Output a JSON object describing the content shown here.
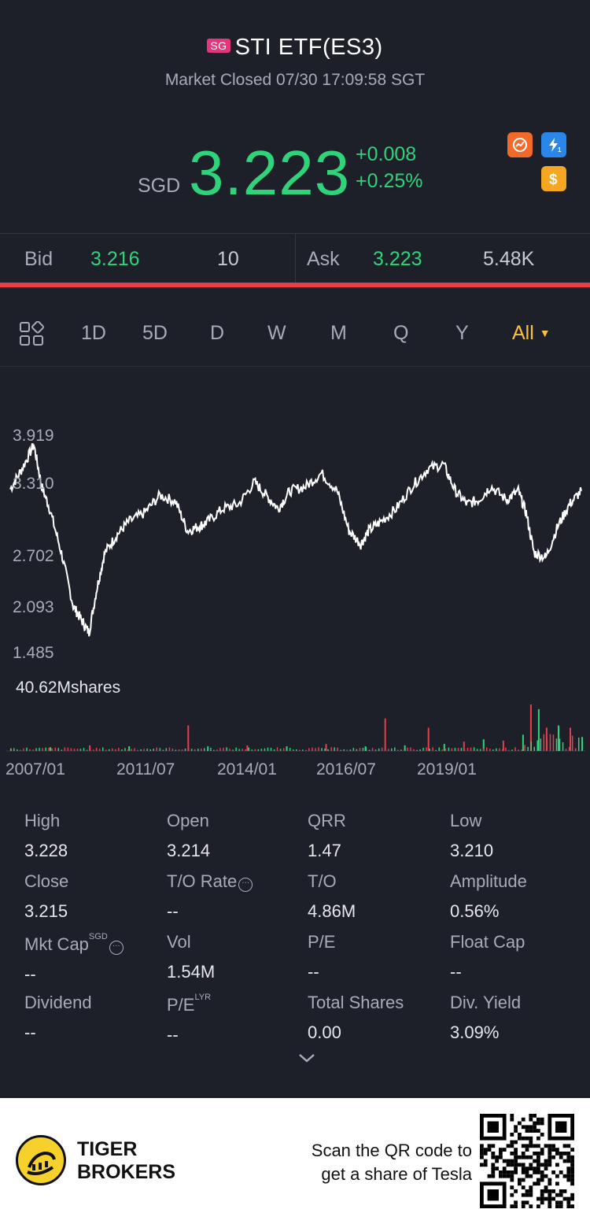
{
  "header": {
    "market_badge": "SG",
    "title": "STI ETF(ES3)",
    "status": "Market Closed 07/30 17:09:58 SGT",
    "currency": "SGD",
    "price": "3.223",
    "change": "+0.008",
    "change_pct": "+0.25%",
    "icons": [
      "chart-badge-icon",
      "lightning-level1-icon",
      "dollar-icon"
    ]
  },
  "quote": {
    "bid_label": "Bid",
    "bid_price": "3.216",
    "bid_size": "10",
    "ask_label": "Ask",
    "ask_price": "3.223",
    "ask_size": "5.48K"
  },
  "tabs": {
    "items": [
      "1D",
      "5D",
      "D",
      "W",
      "M",
      "Q",
      "Y",
      "All"
    ],
    "active": "All"
  },
  "chart_data": {
    "type": "line",
    "y_ticks": [
      "3.919",
      "3.310",
      "2.702",
      "2.093",
      "1.485"
    ],
    "ylim": [
      1.485,
      3.919
    ],
    "x_ticks": [
      "2007/01",
      "2011/07",
      "2014/01",
      "2016/07",
      "2019/01"
    ],
    "volume_label": "40.62Mshares",
    "series": [
      {
        "x": [
          2007.0,
          2007.3,
          2007.6,
          2007.8,
          2008.0,
          2008.3,
          2008.6,
          2008.8,
          2009.0,
          2009.2,
          2009.4,
          2009.7,
          2010.0,
          2010.4,
          2010.8,
          2011.2,
          2011.5,
          2011.8,
          2012.0,
          2012.4,
          2012.8,
          2013.2,
          2013.5,
          2013.8,
          2014.1,
          2014.5,
          2014.9,
          2015.3,
          2015.6,
          2015.9,
          2016.1,
          2016.4,
          2016.8,
          2017.2,
          2017.6,
          2018.0,
          2018.3,
          2018.6,
          2018.9,
          2019.2,
          2019.6,
          2019.9,
          2020.1,
          2020.3,
          2020.6,
          2020.9,
          2021.2,
          2021.5
        ],
        "y": [
          3.32,
          3.55,
          3.82,
          3.35,
          3.1,
          2.6,
          2.0,
          1.85,
          1.7,
          2.2,
          2.6,
          2.8,
          2.95,
          3.05,
          3.25,
          3.18,
          2.85,
          2.9,
          2.95,
          3.1,
          3.15,
          3.4,
          3.25,
          3.1,
          3.3,
          3.35,
          3.5,
          3.3,
          2.85,
          2.7,
          2.85,
          2.95,
          3.1,
          3.35,
          3.55,
          3.6,
          3.3,
          3.15,
          3.2,
          3.35,
          3.2,
          3.3,
          3.05,
          2.6,
          2.55,
          2.9,
          3.15,
          3.3
        ]
      }
    ],
    "volume_x": [
      2007.0,
      2008.0,
      2009.0,
      2010.0,
      2011.5,
      2012.0,
      2013.0,
      2014.0,
      2015.0,
      2016.0,
      2016.5,
      2017.0,
      2017.6,
      2018.0,
      2018.5,
      2019.0,
      2019.5,
      2020.0,
      2020.2,
      2020.4,
      2020.6,
      2020.9,
      2021.2,
      2021.5
    ],
    "volume_values": [
      0.04,
      0.08,
      0.12,
      0.1,
      0.55,
      0.1,
      0.12,
      0.1,
      0.15,
      0.1,
      0.7,
      0.12,
      0.5,
      0.15,
      0.2,
      0.25,
      0.22,
      0.35,
      1.0,
      0.9,
      0.5,
      0.55,
      0.5,
      0.3
    ]
  },
  "stats": [
    {
      "label": "High",
      "value": "3.228"
    },
    {
      "label": "Open",
      "value": "3.214"
    },
    {
      "label": "QRR",
      "value": "1.47"
    },
    {
      "label": "Low",
      "value": "3.210"
    },
    {
      "label": "Close",
      "value": "3.215"
    },
    {
      "label": "T/O Rate",
      "value": "--"
    },
    {
      "label": "T/O",
      "value": "4.86M"
    },
    {
      "label": "Amplitude",
      "value": "0.56%"
    },
    {
      "label": "Mkt Cap",
      "value": "--",
      "sup": "SGD"
    },
    {
      "label": "Vol",
      "value": "1.54M"
    },
    {
      "label": "P/E",
      "value": "--"
    },
    {
      "label": "Float Cap",
      "value": "--"
    },
    {
      "label": "Dividend",
      "value": "--"
    },
    {
      "label": "P/E",
      "value": "--",
      "sup": "LYR"
    },
    {
      "label": "Total Shares",
      "value": "0.00"
    },
    {
      "label": "Div. Yield",
      "value": "3.09%"
    }
  ],
  "footer": {
    "brand_line1": "TIGER",
    "brand_line2": "BROKERS",
    "scan_line1": "Scan the QR code to",
    "scan_line2": "get a share of Tesla"
  },
  "colors": {
    "up": "#2fd37a",
    "down": "#e83d4b",
    "accent": "#f7c244",
    "background": "#1e2029"
  }
}
